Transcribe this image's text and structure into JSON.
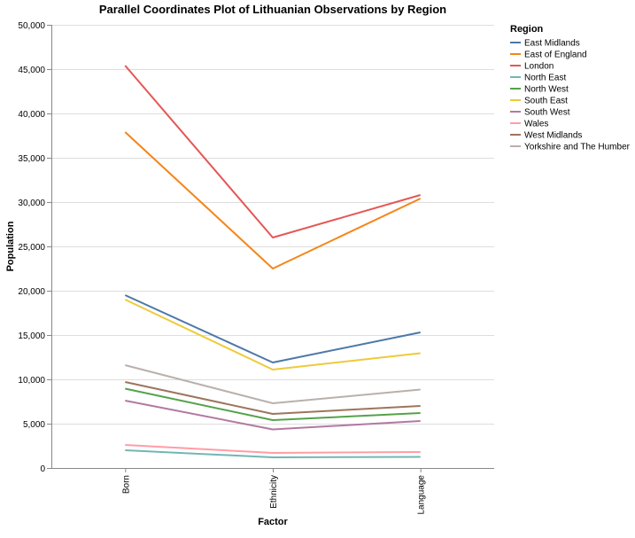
{
  "chart_data": {
    "type": "line",
    "title": "Parallel Coordinates Plot of Lithuanian Observations by Region",
    "xlabel": "Factor",
    "ylabel": "Population",
    "ylim": [
      0,
      50000
    ],
    "y_ticks": [
      0,
      5000,
      10000,
      15000,
      20000,
      25000,
      30000,
      35000,
      40000,
      45000,
      50000
    ],
    "y_tick_labels": [
      "0",
      "5,000",
      "10,000",
      "15,000",
      "20,000",
      "25,000",
      "30,000",
      "35,000",
      "40,000",
      "45,000",
      "50,000"
    ],
    "categories": [
      "Born",
      "Ethnicity",
      "Language"
    ],
    "grid": true,
    "legend_title": "Region",
    "legend_position": "right",
    "series": [
      {
        "name": "East Midlands",
        "color": "#4c78a8",
        "values": [
          19500,
          11900,
          15300
        ]
      },
      {
        "name": "East of England",
        "color": "#f58518",
        "values": [
          37900,
          22500,
          30400
        ]
      },
      {
        "name": "London",
        "color": "#e45756",
        "values": [
          45400,
          26000,
          30800
        ]
      },
      {
        "name": "North East",
        "color": "#72b7b2",
        "values": [
          2000,
          1200,
          1250
        ]
      },
      {
        "name": "North West",
        "color": "#54a24b",
        "values": [
          8950,
          5400,
          6200
        ]
      },
      {
        "name": "South East",
        "color": "#eeca3b",
        "values": [
          19000,
          11100,
          12950
        ]
      },
      {
        "name": "South West",
        "color": "#b279a2",
        "values": [
          7600,
          4350,
          5300
        ]
      },
      {
        "name": "Wales",
        "color": "#ff9da6",
        "values": [
          2600,
          1700,
          1800
        ]
      },
      {
        "name": "West Midlands",
        "color": "#9d755d",
        "values": [
          9700,
          6100,
          7000
        ]
      },
      {
        "name": "Yorkshire and The Humber",
        "color": "#bab0ac",
        "values": [
          11600,
          7300,
          8850
        ]
      }
    ]
  }
}
